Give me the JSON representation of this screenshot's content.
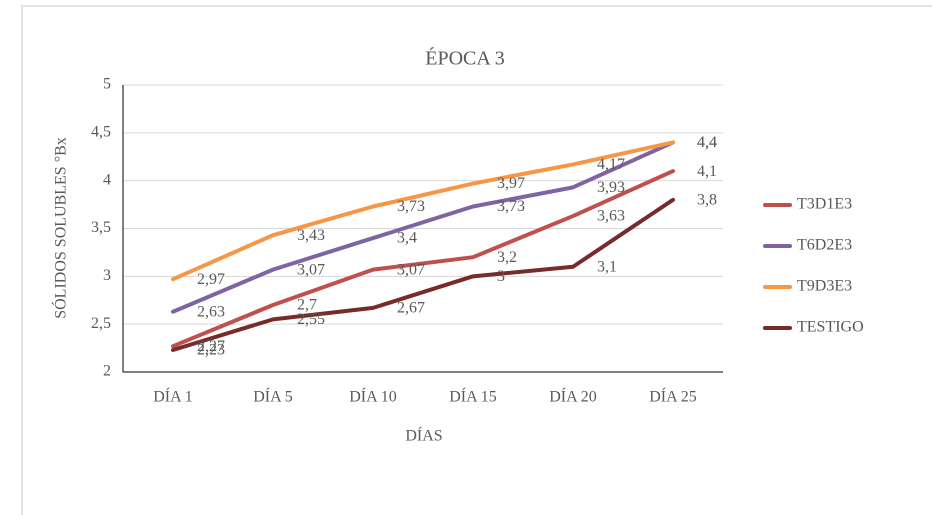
{
  "chart_data": {
    "type": "line",
    "title": "ÉPOCA 3",
    "x_label": "DÍAS",
    "y_label": "SÓLIDOS SOLUBLES °Bx",
    "categories": [
      "DÍA 1",
      "DÍA 5",
      "DÍA 10",
      "DÍA 15",
      "DÍA 20",
      "DÍA 25"
    ],
    "series": [
      {
        "name": "T3D1E3",
        "color": "#c0504d",
        "values": [
          2.27,
          2.7,
          3.07,
          3.2,
          3.63,
          4.1
        ],
        "value_labels": [
          "2,27",
          "2,7",
          "3,07",
          "3,2",
          "3,63",
          "4,1"
        ]
      },
      {
        "name": "T6D2E3",
        "color": "#8064a2",
        "values": [
          2.63,
          3.07,
          3.4,
          3.73,
          3.93,
          4.4
        ],
        "value_labels": [
          "2,63",
          "3,07",
          "3,4",
          "3,73",
          "3,93",
          "4,4"
        ]
      },
      {
        "name": "T9D3E3",
        "color": "#f79646",
        "values": [
          2.97,
          3.43,
          3.73,
          3.97,
          4.17,
          4.4
        ],
        "value_labels": [
          "2,97",
          "3,43",
          "3,73",
          "3,97",
          "4,17",
          "4,4"
        ]
      },
      {
        "name": "TESTIGO",
        "color": "#772c2a",
        "values": [
          2.23,
          2.55,
          2.67,
          3,
          3.1,
          3.8
        ],
        "value_labels": [
          "2,23",
          "2,55",
          "2,67",
          "3",
          "3,1",
          "3,8"
        ]
      }
    ],
    "ylim": [
      2,
      5
    ],
    "yticks": [
      2,
      {
        "value": 2.5,
        "label": "2,5"
      },
      3,
      {
        "value": 3.5,
        "label": "3,5"
      },
      4,
      {
        "value": 4.5,
        "label": "4,5"
      },
      5
    ],
    "grid": true,
    "legend": "right"
  }
}
